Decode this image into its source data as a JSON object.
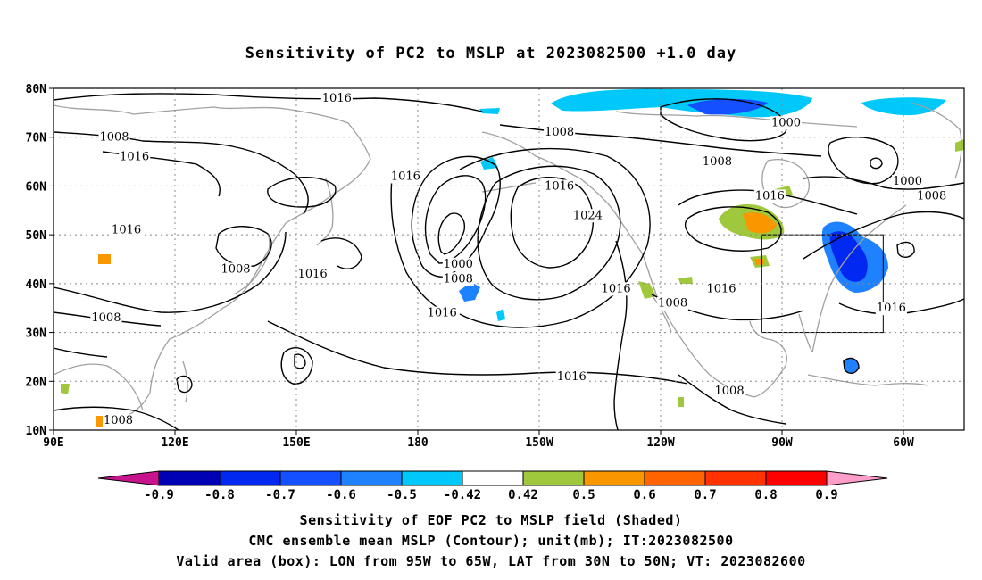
{
  "title": "Sensitivity of PC2 to MSLP at 2023082500 +1.0 day",
  "lat_labels": [
    "80N",
    "70N",
    "60N",
    "50N",
    "40N",
    "30N",
    "20N",
    "10N"
  ],
  "lon_labels": [
    "90E",
    "120E",
    "150E",
    "180",
    "150W",
    "120W",
    "90W",
    "60W"
  ],
  "contour_labels": [
    {
      "text": "1016",
      "lon": 160,
      "lat": 78
    },
    {
      "text": "1008",
      "lon": 105,
      "lat": 70
    },
    {
      "text": "1016",
      "lon": 110,
      "lat": 66
    },
    {
      "text": "1016",
      "lon": 177,
      "lat": 62
    },
    {
      "text": "1008",
      "lon": -145,
      "lat": 71
    },
    {
      "text": "1016",
      "lon": -145,
      "lat": 60
    },
    {
      "text": "1024",
      "lon": -138,
      "lat": 54
    },
    {
      "text": "1008",
      "lon": -106,
      "lat": 65
    },
    {
      "text": "1016",
      "lon": -93,
      "lat": 58
    },
    {
      "text": "1000",
      "lon": -89,
      "lat": 73
    },
    {
      "text": "1000",
      "lon": -59,
      "lat": 61
    },
    {
      "text": "1008",
      "lon": -53,
      "lat": 58
    },
    {
      "text": "1016",
      "lon": 108,
      "lat": 51
    },
    {
      "text": "1008",
      "lon": 135,
      "lat": 43
    },
    {
      "text": "1016",
      "lon": 154,
      "lat": 42
    },
    {
      "text": "1000",
      "lon": -170,
      "lat": 44
    },
    {
      "text": "1008",
      "lon": -170,
      "lat": 41
    },
    {
      "text": "1016",
      "lon": -131,
      "lat": 39
    },
    {
      "text": "1016",
      "lon": -105,
      "lat": 39
    },
    {
      "text": "1008",
      "lon": -117,
      "lat": 36
    },
    {
      "text": "1016",
      "lon": -63,
      "lat": 35
    },
    {
      "text": "1008",
      "lon": 103,
      "lat": 33
    },
    {
      "text": "1016",
      "lon": -174,
      "lat": 34
    },
    {
      "text": "1016",
      "lon": -142,
      "lat": 21
    },
    {
      "text": "1008",
      "lon": -103,
      "lat": 18
    },
    {
      "text": "1008",
      "lon": 106,
      "lat": 12
    }
  ],
  "colorbar": {
    "labels": [
      "-0.9",
      "-0.8",
      "-0.7",
      "-0.6",
      "-0.5",
      "-0.42",
      "0.42",
      "0.5",
      "0.6",
      "0.7",
      "0.8",
      "0.9"
    ],
    "colors": [
      "#0000b4",
      "#0028f0",
      "#1450ff",
      "#1e82ff",
      "#00c8f8",
      "#ffffff",
      "#a0c83c",
      "#fa9600",
      "#ff6400",
      "#ff3200",
      "#ff0000"
    ],
    "end_low_color": "#c8148c",
    "end_high_color": "#ff9ec8"
  },
  "valid_box": {
    "lon_min": -95,
    "lon_max": -65,
    "lat_min": 30,
    "lat_max": 50
  },
  "captions": [
    "Sensitivity of EOF PC2 to MSLP field (Shaded)",
    "CMC ensemble mean MSLP (Contour); unit(mb); IT:2023082500",
    "Valid area (box): LON from 95W to 65W, LAT from 30N to 50N; VT: 2023082600"
  ]
}
